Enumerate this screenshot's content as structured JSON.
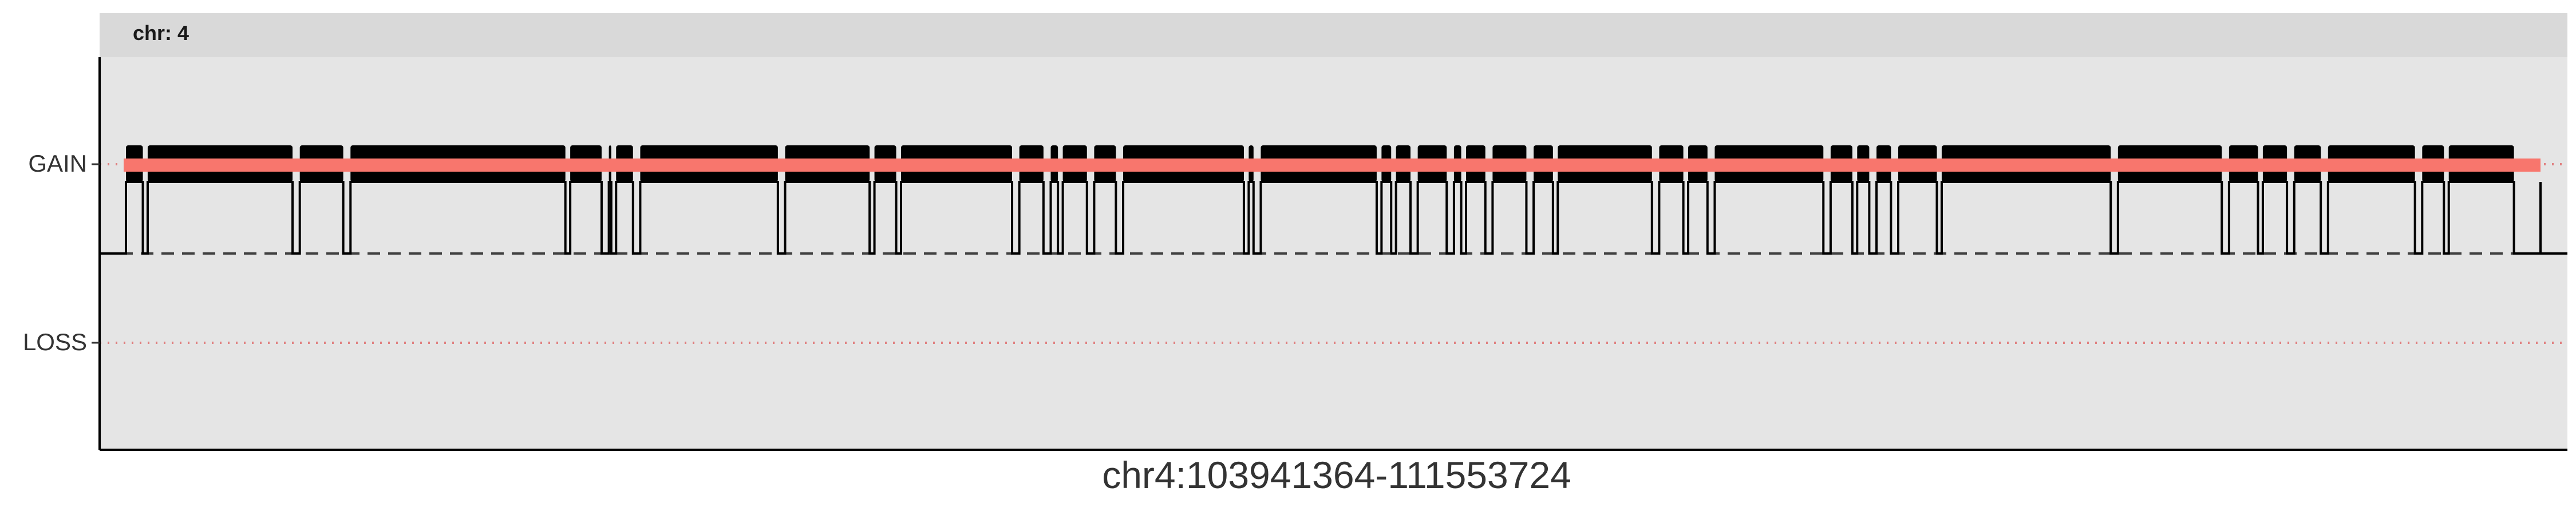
{
  "chart_data": {
    "type": "step",
    "facet_label": "chr: 4",
    "xlabel": "chr4:103941364-111553724",
    "y_categories": [
      "GAIN",
      "LOSS"
    ],
    "reference_levels": {
      "dashed_baseline": "neutral",
      "dotted_lines": [
        "GAIN",
        "LOSS"
      ]
    },
    "highlight_band": {
      "level": "GAIN",
      "color": "#F8766D"
    },
    "gap_starts": [
      0.007,
      0.069,
      0.09,
      0.182,
      0.197,
      0.201,
      0.21,
      0.27,
      0.308,
      0.319,
      0.367,
      0.38,
      0.386,
      0.398,
      0.41,
      0.463,
      0.467,
      0.518,
      0.524,
      0.532,
      0.547,
      0.553,
      0.563,
      0.58,
      0.591,
      0.632,
      0.645,
      0.655,
      0.703,
      0.715,
      0.722,
      0.731,
      0.75,
      0.822,
      0.868,
      0.883,
      0.895,
      0.909,
      0.948,
      0.96,
      0.989
    ],
    "gap_widths": [
      0.002,
      0.003,
      0.003,
      0.002,
      0.003,
      0.002,
      0.003,
      0.003,
      0.002,
      0.002,
      0.003,
      0.003,
      0.002,
      0.003,
      0.003,
      0.002,
      0.003,
      0.002,
      0.002,
      0.003,
      0.003,
      0.002,
      0.003,
      0.003,
      0.002,
      0.003,
      0.002,
      0.003,
      0.003,
      0.002,
      0.003,
      0.003,
      0.002,
      0.003,
      0.003,
      0.002,
      0.003,
      0.003,
      0.003,
      0.002,
      0.011
    ],
    "colors": {
      "panel": "#E5E5E5",
      "strip": "#D9D9D9",
      "trace": "#000000",
      "band": "#F8766D",
      "dotted": "#E08080"
    }
  }
}
